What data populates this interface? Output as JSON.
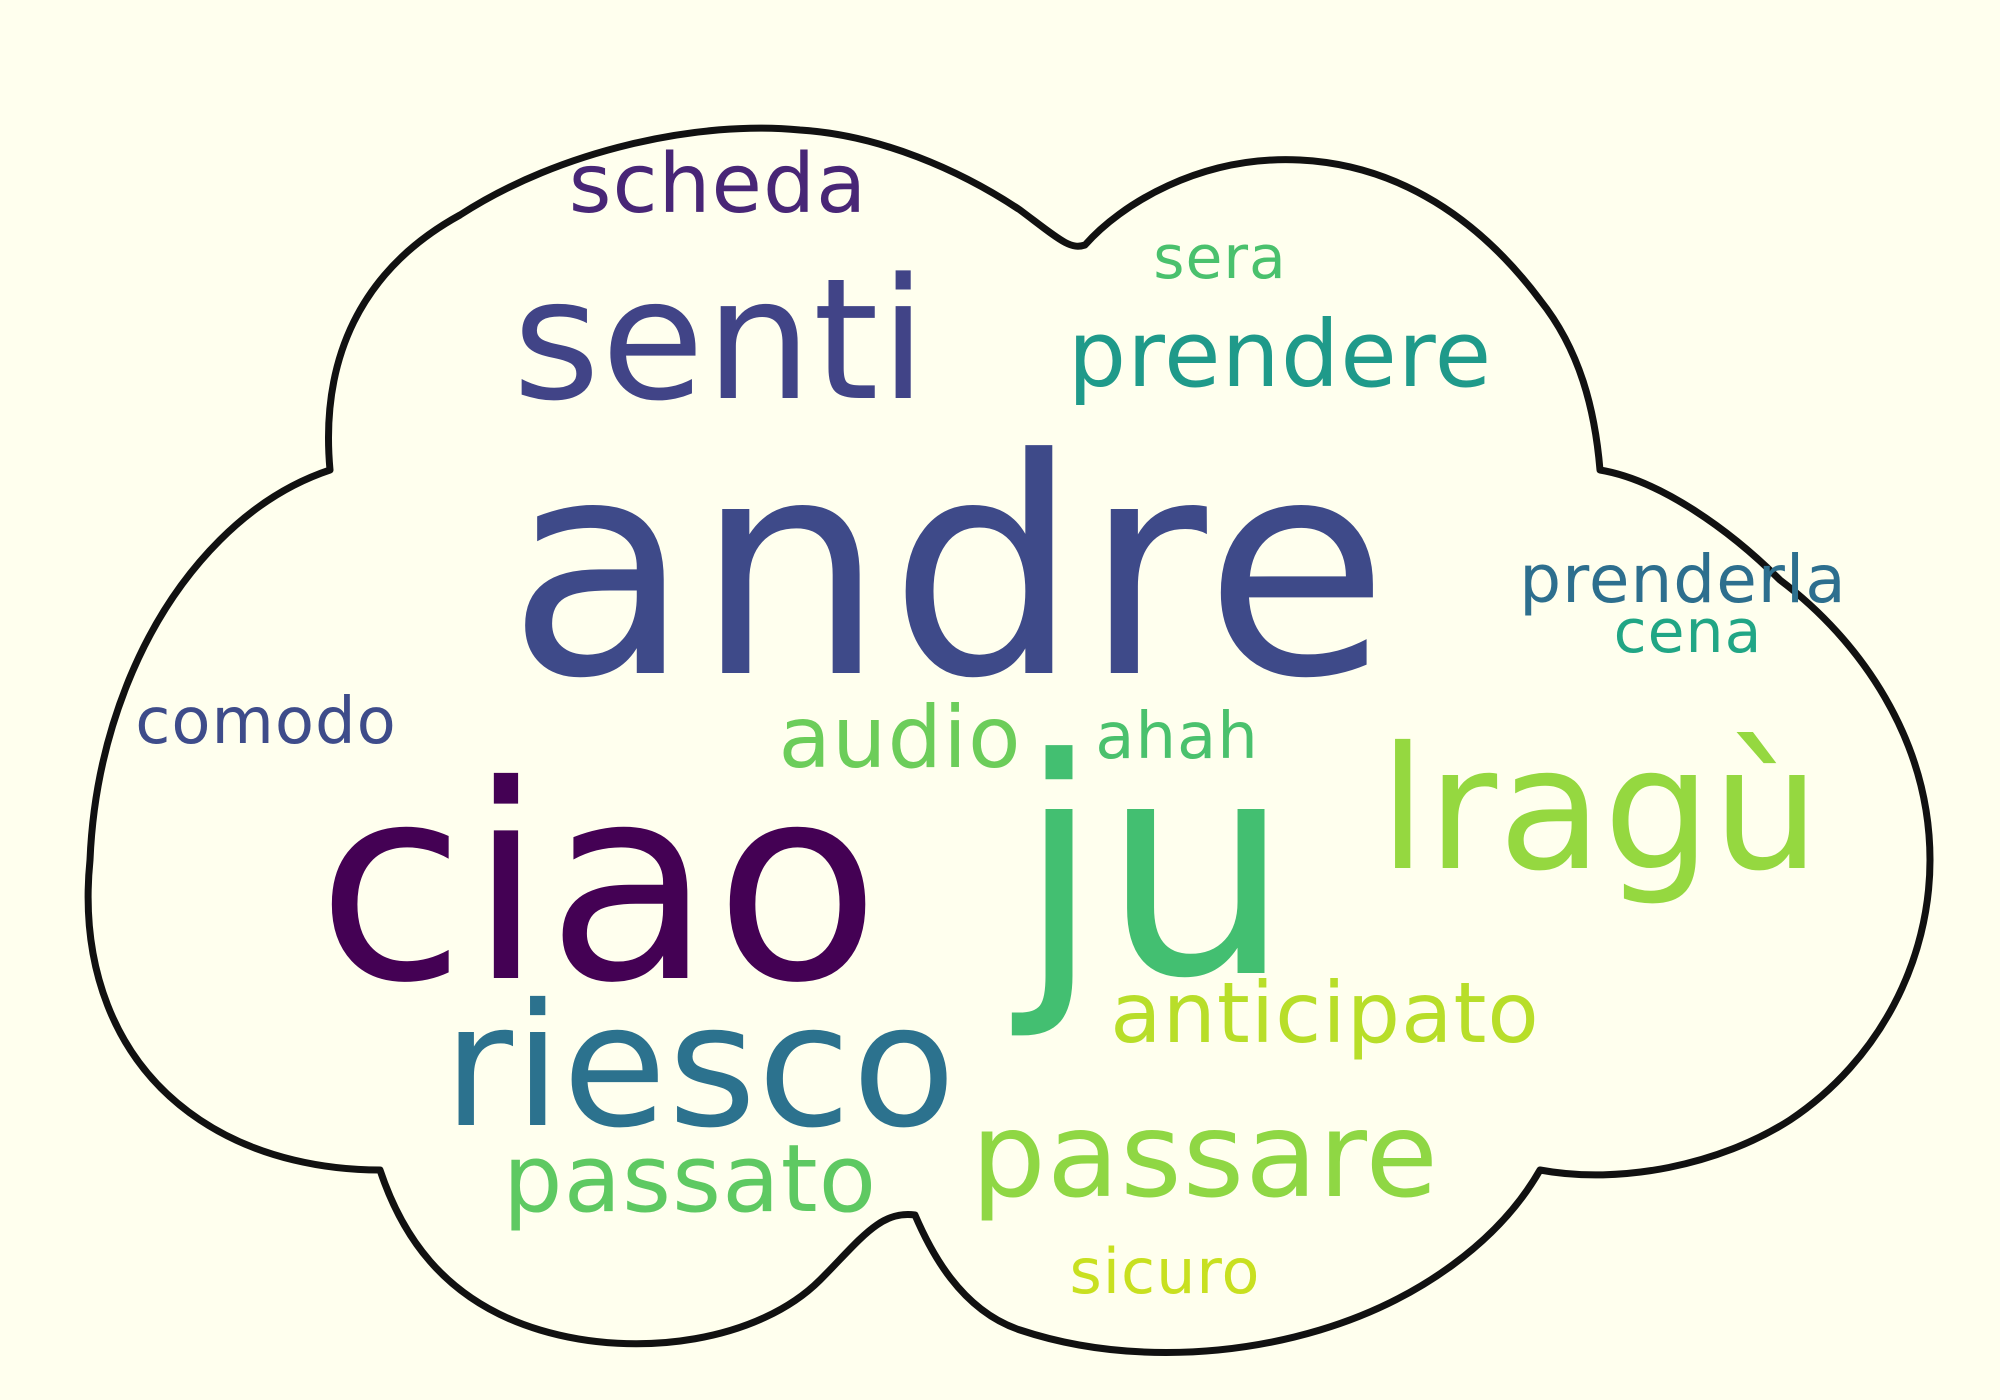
{
  "background_color": "#FFFFEE",
  "outline_color": "#111111",
  "words": [
    {
      "id": "scheda",
      "text": "scheda",
      "color": "#482676"
    },
    {
      "id": "sera",
      "text": "sera",
      "color": "#4AC16D"
    },
    {
      "id": "senti",
      "text": "senti",
      "color": "#414487"
    },
    {
      "id": "prendere",
      "text": "prendere",
      "color": "#1F9A8A"
    },
    {
      "id": "andre",
      "text": "andre",
      "color": "#3E4A89"
    },
    {
      "id": "prenderla",
      "text": "prenderla",
      "color": "#2D6F8E"
    },
    {
      "id": "cena",
      "text": "cena",
      "color": "#21A685"
    },
    {
      "id": "comodo",
      "text": "comodo",
      "color": "#3E4C8A"
    },
    {
      "id": "audio",
      "text": "audio",
      "color": "#6CCD5A"
    },
    {
      "id": "dot",
      "text": ".",
      "color": "#35B779"
    },
    {
      "id": "ahah",
      "text": "ahah",
      "color": "#4AC16D"
    },
    {
      "id": "ciao",
      "text": "ciao",
      "color": "#440154"
    },
    {
      "id": "ju",
      "text": "ju",
      "color": "#43BF71"
    },
    {
      "id": "ragu",
      "text": "lragù",
      "color": "#95D840"
    },
    {
      "id": "anticipato",
      "text": "anticipato",
      "color": "#B8DE29"
    },
    {
      "id": "riesco",
      "text": "riesco",
      "color": "#2C728E"
    },
    {
      "id": "passare",
      "text": "passare",
      "color": "#8FD744"
    },
    {
      "id": "passato",
      "text": "passato",
      "color": "#5EC962"
    },
    {
      "id": "sicuro",
      "text": "sicuro",
      "color": "#C8E020"
    }
  ]
}
